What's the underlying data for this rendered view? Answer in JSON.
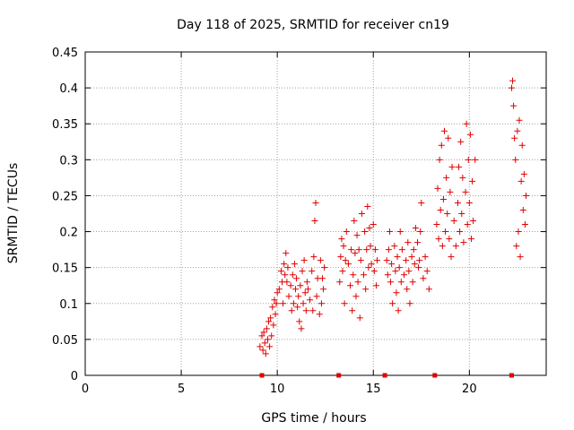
{
  "chart_data": {
    "type": "scatter",
    "title": "Day 118 of 2025, SRMTID for receiver cn19",
    "xlabel": "GPS time / hours",
    "ylabel": "SRMTID / TECUs",
    "xlim": [
      0,
      24
    ],
    "ylim": [
      0,
      0.45
    ],
    "grid": true,
    "marker": "+",
    "colors": {
      "series": "#e00000",
      "axis": "#000000",
      "grid": "#a0a0a0"
    },
    "xticks": [
      {
        "value": 0,
        "label": "0"
      },
      {
        "value": 5,
        "label": "5"
      },
      {
        "value": 10,
        "label": "10"
      },
      {
        "value": 15,
        "label": "15"
      },
      {
        "value": 20,
        "label": "20"
      }
    ],
    "yticks": [
      {
        "value": 0,
        "label": "0"
      },
      {
        "value": 0.05,
        "label": "0.05"
      },
      {
        "value": 0.1,
        "label": "0.1"
      },
      {
        "value": 0.15,
        "label": "0.15"
      },
      {
        "value": 0.2,
        "label": "0.2"
      },
      {
        "value": 0.25,
        "label": "0.25"
      },
      {
        "value": 0.3,
        "label": "0.3"
      },
      {
        "value": 0.35,
        "label": "0.35"
      },
      {
        "value": 0.4,
        "label": "0.4"
      },
      {
        "value": 0.45,
        "label": "0.45"
      }
    ],
    "gap_markers_x": [
      9.2,
      13.2,
      15.6,
      18.2,
      22.2
    ],
    "series": [
      {
        "name": "SRMTID",
        "points": [
          [
            9.1,
            0.04
          ],
          [
            9.2,
            0.055
          ],
          [
            9.25,
            0.035
          ],
          [
            9.3,
            0.06
          ],
          [
            9.35,
            0.045
          ],
          [
            9.4,
            0.03
          ],
          [
            9.45,
            0.065
          ],
          [
            9.5,
            0.05
          ],
          [
            9.55,
            0.075
          ],
          [
            9.6,
            0.04
          ],
          [
            9.65,
            0.08
          ],
          [
            9.7,
            0.055
          ],
          [
            9.75,
            0.095
          ],
          [
            9.8,
            0.07
          ],
          [
            9.85,
            0.105
          ],
          [
            9.9,
            0.085
          ],
          [
            9.95,
            0.1
          ],
          [
            10.0,
            0.115
          ],
          [
            10.1,
            0.12
          ],
          [
            10.2,
            0.145
          ],
          [
            10.25,
            0.13
          ],
          [
            10.3,
            0.1
          ],
          [
            10.35,
            0.155
          ],
          [
            10.4,
            0.14
          ],
          [
            10.45,
            0.17
          ],
          [
            10.5,
            0.13
          ],
          [
            10.55,
            0.15
          ],
          [
            10.6,
            0.11
          ],
          [
            10.7,
            0.125
          ],
          [
            10.75,
            0.09
          ],
          [
            10.8,
            0.14
          ],
          [
            10.85,
            0.1
          ],
          [
            10.9,
            0.155
          ],
          [
            10.95,
            0.12
          ],
          [
            11.0,
            0.135
          ],
          [
            11.05,
            0.095
          ],
          [
            11.1,
            0.11
          ],
          [
            11.15,
            0.075
          ],
          [
            11.2,
            0.125
          ],
          [
            11.25,
            0.065
          ],
          [
            11.3,
            0.145
          ],
          [
            11.35,
            0.1
          ],
          [
            11.4,
            0.16
          ],
          [
            11.45,
            0.115
          ],
          [
            11.5,
            0.09
          ],
          [
            11.55,
            0.13
          ],
          [
            11.6,
            0.12
          ],
          [
            11.7,
            0.105
          ],
          [
            11.8,
            0.145
          ],
          [
            11.85,
            0.09
          ],
          [
            11.9,
            0.165
          ],
          [
            11.95,
            0.215
          ],
          [
            12.0,
            0.24
          ],
          [
            12.05,
            0.11
          ],
          [
            12.1,
            0.135
          ],
          [
            12.2,
            0.085
          ],
          [
            12.25,
            0.16
          ],
          [
            12.3,
            0.1
          ],
          [
            12.35,
            0.135
          ],
          [
            12.4,
            0.12
          ],
          [
            12.45,
            0.15
          ],
          [
            13.25,
            0.13
          ],
          [
            13.3,
            0.165
          ],
          [
            13.35,
            0.19
          ],
          [
            13.4,
            0.145
          ],
          [
            13.45,
            0.18
          ],
          [
            13.5,
            0.1
          ],
          [
            13.55,
            0.16
          ],
          [
            13.6,
            0.2
          ],
          [
            13.7,
            0.155
          ],
          [
            13.8,
            0.125
          ],
          [
            13.85,
            0.175
          ],
          [
            13.9,
            0.09
          ],
          [
            13.95,
            0.14
          ],
          [
            14.0,
            0.215
          ],
          [
            14.05,
            0.17
          ],
          [
            14.1,
            0.11
          ],
          [
            14.15,
            0.195
          ],
          [
            14.2,
            0.13
          ],
          [
            14.25,
            0.175
          ],
          [
            14.3,
            0.08
          ],
          [
            14.35,
            0.16
          ],
          [
            14.4,
            0.225
          ],
          [
            14.5,
            0.14
          ],
          [
            14.55,
            0.2
          ],
          [
            14.6,
            0.12
          ],
          [
            14.65,
            0.175
          ],
          [
            14.7,
            0.235
          ],
          [
            14.75,
            0.15
          ],
          [
            14.8,
            0.205
          ],
          [
            14.85,
            0.18
          ],
          [
            14.9,
            0.155
          ],
          [
            15.0,
            0.21
          ],
          [
            15.05,
            0.145
          ],
          [
            15.1,
            0.175
          ],
          [
            15.15,
            0.125
          ],
          [
            15.2,
            0.16
          ],
          [
            15.7,
            0.16
          ],
          [
            15.75,
            0.14
          ],
          [
            15.8,
            0.175
          ],
          [
            15.85,
            0.2
          ],
          [
            15.9,
            0.13
          ],
          [
            15.95,
            0.155
          ],
          [
            16.0,
            0.1
          ],
          [
            16.1,
            0.18
          ],
          [
            16.15,
            0.145
          ],
          [
            16.2,
            0.115
          ],
          [
            16.25,
            0.165
          ],
          [
            16.3,
            0.09
          ],
          [
            16.35,
            0.15
          ],
          [
            16.4,
            0.2
          ],
          [
            16.45,
            0.13
          ],
          [
            16.5,
            0.175
          ],
          [
            16.6,
            0.14
          ],
          [
            16.7,
            0.16
          ],
          [
            16.75,
            0.12
          ],
          [
            16.8,
            0.185
          ],
          [
            16.85,
            0.145
          ],
          [
            16.9,
            0.1
          ],
          [
            17.0,
            0.165
          ],
          [
            17.05,
            0.13
          ],
          [
            17.1,
            0.175
          ],
          [
            17.15,
            0.155
          ],
          [
            17.2,
            0.205
          ],
          [
            17.3,
            0.185
          ],
          [
            17.35,
            0.15
          ],
          [
            17.4,
            0.16
          ],
          [
            17.45,
            0.2
          ],
          [
            17.5,
            0.24
          ],
          [
            17.6,
            0.135
          ],
          [
            17.7,
            0.165
          ],
          [
            17.8,
            0.145
          ],
          [
            17.9,
            0.12
          ],
          [
            18.3,
            0.21
          ],
          [
            18.35,
            0.26
          ],
          [
            18.4,
            0.19
          ],
          [
            18.45,
            0.3
          ],
          [
            18.5,
            0.23
          ],
          [
            18.55,
            0.32
          ],
          [
            18.6,
            0.18
          ],
          [
            18.65,
            0.245
          ],
          [
            18.7,
            0.34
          ],
          [
            18.75,
            0.2
          ],
          [
            18.8,
            0.275
          ],
          [
            18.85,
            0.225
          ],
          [
            18.9,
            0.33
          ],
          [
            18.95,
            0.19
          ],
          [
            19.0,
            0.255
          ],
          [
            19.05,
            0.165
          ],
          [
            19.1,
            0.29
          ],
          [
            19.2,
            0.215
          ],
          [
            19.3,
            0.18
          ],
          [
            19.4,
            0.24
          ],
          [
            19.45,
            0.29
          ],
          [
            19.5,
            0.2
          ],
          [
            19.55,
            0.325
          ],
          [
            19.6,
            0.225
          ],
          [
            19.65,
            0.275
          ],
          [
            19.7,
            0.185
          ],
          [
            19.8,
            0.255
          ],
          [
            19.85,
            0.35
          ],
          [
            19.9,
            0.21
          ],
          [
            19.95,
            0.3
          ],
          [
            20.0,
            0.24
          ],
          [
            20.05,
            0.335
          ],
          [
            20.1,
            0.19
          ],
          [
            20.15,
            0.27
          ],
          [
            20.2,
            0.215
          ],
          [
            20.3,
            0.3
          ],
          [
            22.2,
            0.4
          ],
          [
            22.25,
            0.41
          ],
          [
            22.3,
            0.375
          ],
          [
            22.35,
            0.33
          ],
          [
            22.4,
            0.3
          ],
          [
            22.45,
            0.18
          ],
          [
            22.5,
            0.34
          ],
          [
            22.55,
            0.2
          ],
          [
            22.6,
            0.355
          ],
          [
            22.65,
            0.165
          ],
          [
            22.7,
            0.27
          ],
          [
            22.75,
            0.32
          ],
          [
            22.8,
            0.23
          ],
          [
            22.85,
            0.28
          ],
          [
            22.9,
            0.21
          ],
          [
            22.95,
            0.25
          ]
        ]
      }
    ]
  }
}
